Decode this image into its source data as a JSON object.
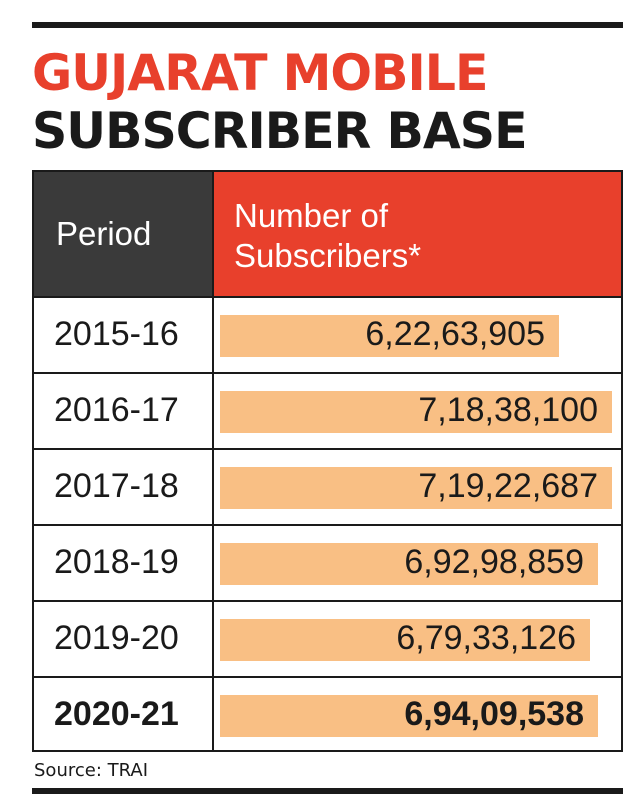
{
  "title": {
    "line1": "GUJARAT MOBILE",
    "line2": "SUBSCRIBER BASE"
  },
  "colors": {
    "accent": "#e8402c",
    "header_dark": "#3a3a3a",
    "bar": "#f9bf84",
    "ink": "#1a1a1a"
  },
  "table": {
    "headers": {
      "period": "Period",
      "subscribers": "Number of\nSubscribers*"
    },
    "rows": [
      {
        "period": "2015-16",
        "value_label": "6,22,63,905"
      },
      {
        "period": "2016-17",
        "value_label": "7,18,38,100"
      },
      {
        "period": "2017-18",
        "value_label": "7,19,22,687"
      },
      {
        "period": "2018-19",
        "value_label": "6,92,98,859"
      },
      {
        "period": "2019-20",
        "value_label": "6,79,33,126"
      },
      {
        "period": "2020-21",
        "value_label": "6,94,09,538",
        "bold": true
      }
    ]
  },
  "source": "Source: TRAI",
  "chart_data": {
    "type": "bar",
    "orientation": "horizontal",
    "title": "GUJARAT MOBILE SUBSCRIBER BASE",
    "categories": [
      "2015-16",
      "2016-17",
      "2017-18",
      "2018-19",
      "2019-20",
      "2020-21"
    ],
    "values": [
      62263905,
      71838100,
      71922687,
      69298859,
      67933126,
      69409538
    ],
    "xlabel": "Number of Subscribers*",
    "ylabel": "Period",
    "grid": false,
    "legend": "none"
  }
}
